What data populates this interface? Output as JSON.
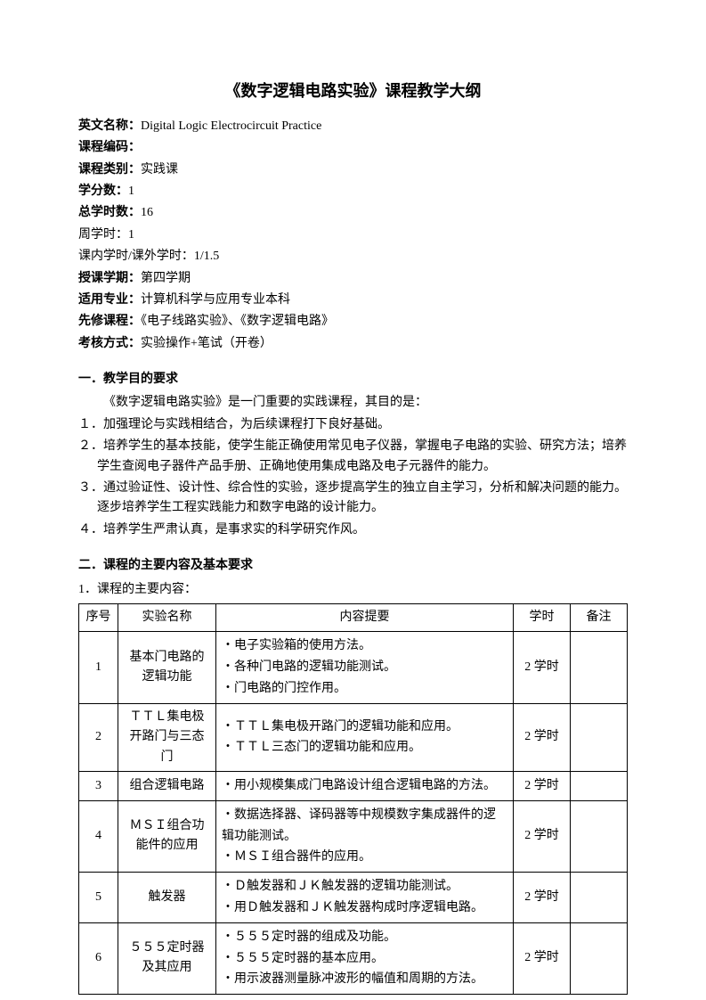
{
  "title": "《数字逻辑电路实验》课程教学大纲",
  "meta": {
    "english_name": {
      "label": "英文名称：",
      "value": "Digital Logic Electrocircuit Practice"
    },
    "course_code": {
      "label": "课程编码：",
      "value": ""
    },
    "course_type": {
      "label": "课程类别：",
      "value": "实践课"
    },
    "credits": {
      "label": "学分数：",
      "value": "1"
    },
    "total_hours": {
      "label": "总学时数：",
      "value": "16"
    },
    "weekly_hours": {
      "label": "周学时：",
      "value": "1"
    },
    "in_out_hours": {
      "label": "课内学时/课外学时：",
      "value": "1/1.5"
    },
    "semester": {
      "label": "授课学期：",
      "value": "第四学期"
    },
    "major": {
      "label": "适用专业：",
      "value": "计算机科学与应用专业本科"
    },
    "prereq": {
      "label": "先修课程：",
      "value": "《电子线路实验》、《数字逻辑电路》"
    },
    "assessment": {
      "label": "考核方式：",
      "value": "实验操作+笔试（开卷）"
    }
  },
  "section1": {
    "heading": "一．教学目的要求",
    "intro": "《数字逻辑电路实验》是一门重要的实践课程，其目的是：",
    "items": [
      "１．加强理论与实践相结合，为后续课程打下良好基础。",
      "２．培养学生的基本技能，使学生能正确使用常见电子仪器，掌握电子电路的实验、研究方法；培养学生查阅电子器件产品手册、正确地使用集成电路及电子元器件的能力。",
      "３．通过验证性、设计性、综合性的实验，逐步提高学生的独立自主学习，分析和解决问题的能力。逐步培养学生工程实践能力和数字电路的设计能力。",
      "４．培养学生严肃认真，是事求实的科学研究作风。"
    ]
  },
  "section2": {
    "heading": "二．课程的主要内容及基本要求",
    "subheading": "1．课程的主要内容："
  },
  "table": {
    "headers": {
      "seq": "序号",
      "name": "实验名称",
      "content": "内容提要",
      "hours": "学时",
      "remark": "备注"
    },
    "rows": [
      {
        "seq": "1",
        "name": "基本门电路的逻辑功能",
        "content": "・电子实验箱的使用方法。\n・各种门电路的逻辑功能测试。\n・门电路的门控作用。",
        "hours": "2 学时",
        "remark": ""
      },
      {
        "seq": "2",
        "name": "ＴＴＬ集电极开路门与三态门",
        "content": "・ＴＴＬ集电极开路门的逻辑功能和应用。\n・ＴＴＬ三态门的逻辑功能和应用。",
        "hours": "2 学时",
        "remark": ""
      },
      {
        "seq": "3",
        "name": "组合逻辑电路",
        "content": "・用小规模集成门电路设计组合逻辑电路的方法。",
        "hours": "2 学时",
        "remark": ""
      },
      {
        "seq": "4",
        "name": "ＭＳＩ组合功能件的应用",
        "content": "・数据选择器、译码器等中规模数字集成器件的逻辑功能测试。\n・ＭＳＩ组合器件的应用。",
        "hours": "2 学时",
        "remark": ""
      },
      {
        "seq": "5",
        "name": "触发器",
        "content": "・Ｄ触发器和ＪＫ触发器的逻辑功能测试。\n・用Ｄ触发器和ＪＫ触发器构成时序逻辑电路。",
        "hours": "2 学时",
        "remark": ""
      },
      {
        "seq": "6",
        "name": "５５５定时器及其应用",
        "content": "・５５５定时器的组成及功能。\n・５５５定时器的基本应用。\n・用示波器测量脉冲波形的幅值和周期的方法。",
        "hours": "2 学时",
        "remark": ""
      }
    ]
  }
}
